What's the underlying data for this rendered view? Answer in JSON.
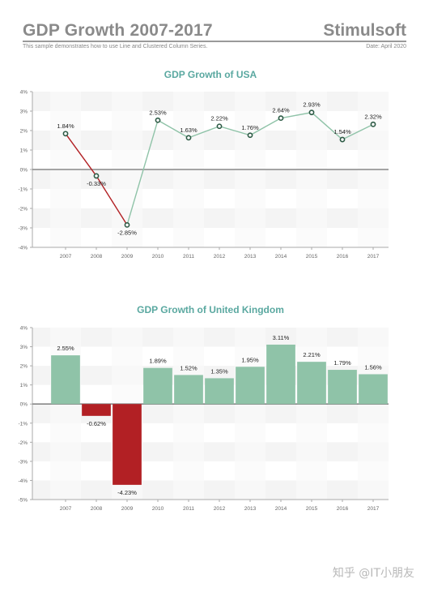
{
  "header": {
    "title": "GDP Growth 2007-2017",
    "brand": "Stimulsoft",
    "subtitle": "This sample demonstrates how to use Line and Clustered Column Series.",
    "date": "Date: April 2020"
  },
  "watermark": "知乎 @IT小朋友",
  "colors": {
    "title_teal": "#5aa8a0",
    "positive": "#8fc3a8",
    "negative": "#b22024",
    "line_positive": "#8fc3a8",
    "marker_stroke": "#2d5a45",
    "axis": "#888888",
    "band": "#f4f4f4"
  },
  "chart_data": [
    {
      "type": "line",
      "title": "GDP Growth of USA",
      "categories": [
        "2007",
        "2008",
        "2009",
        "2010",
        "2011",
        "2012",
        "2013",
        "2014",
        "2015",
        "2016",
        "2017"
      ],
      "values": [
        1.84,
        -0.33,
        -2.85,
        2.53,
        1.63,
        2.22,
        1.76,
        2.64,
        2.93,
        1.54,
        2.32
      ],
      "labels": [
        "1.84%",
        "-0.33%",
        "-2.85%",
        "2.53%",
        "1.63%",
        "2.22%",
        "1.76%",
        "2.64%",
        "2.93%",
        "1.54%",
        "2.32%"
      ],
      "yticks": [
        "4%",
        "3%",
        "2%",
        "1%",
        "0%",
        "-1%",
        "-2%",
        "-3%",
        "-4%"
      ],
      "ylim": [
        -4,
        4
      ],
      "grid": true
    },
    {
      "type": "bar",
      "title": "GDP Growth of United Kingdom",
      "categories": [
        "2007",
        "2008",
        "2009",
        "2010",
        "2011",
        "2012",
        "2013",
        "2014",
        "2015",
        "2016",
        "2017"
      ],
      "values": [
        2.55,
        -0.62,
        -4.23,
        1.89,
        1.52,
        1.35,
        1.95,
        3.11,
        2.21,
        1.79,
        1.56
      ],
      "labels": [
        "2.55%",
        "-0.62%",
        "-4.23%",
        "1.89%",
        "1.52%",
        "1.35%",
        "1.95%",
        "3.11%",
        "2.21%",
        "1.79%",
        "1.56%"
      ],
      "yticks": [
        "4%",
        "3%",
        "2%",
        "1%",
        "0%",
        "-1%",
        "-2%",
        "-3%",
        "-4%",
        "-5%"
      ],
      "ylim": [
        -5,
        4
      ],
      "grid": true
    }
  ]
}
